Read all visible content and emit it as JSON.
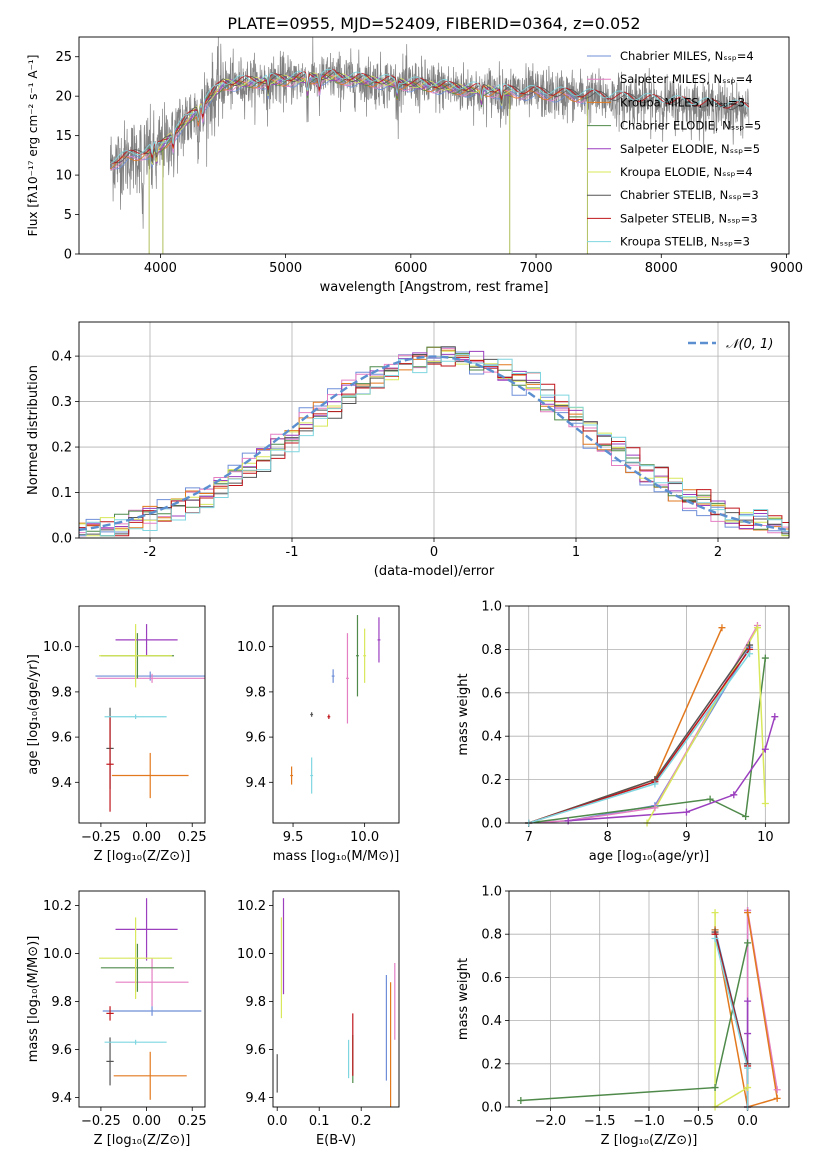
{
  "figure": {
    "title": "PLATE=0955, MJD=52409, FIBERID=0364, z=0.052"
  },
  "colors": {
    "series": [
      "#6f8fd8",
      "#e57fc4",
      "#e2791f",
      "#4f8a4a",
      "#9b3fbf",
      "#d8e85a",
      "#555555",
      "#c0161c",
      "#7fd6e0"
    ],
    "gauss": "#5b8fd0",
    "mass_age_line": "#2e7fd0",
    "grey": "#808080"
  },
  "chart_data": [
    {
      "id": "spectrum",
      "type": "line",
      "xlabel": "wavelength [Angstrom, rest frame]",
      "ylabel": "Flux [fλ10⁻¹⁷ erg cm⁻² s⁻¹ A⁻¹]",
      "xlim": [
        3350,
        9020
      ],
      "ylim": [
        0,
        27.5
      ],
      "xticks": [
        4000,
        5000,
        6000,
        7000,
        8000,
        9000
      ],
      "yticks": [
        0,
        5,
        10,
        15,
        20,
        25
      ],
      "legend_position": "top-right",
      "series": [
        {
          "name": "Chabrier MILES, Nₛₛₚ=4",
          "x_range": [
            3600,
            7400
          ]
        },
        {
          "name": "Salpeter MILES, Nₛₛₚ=4",
          "x_range": [
            3600,
            7400
          ]
        },
        {
          "name": "Kroupa MILES, Nₛₛₚ=3",
          "x_range": [
            3600,
            7400
          ]
        },
        {
          "name": "Chabrier ELODIE, Nₛₛₚ=5",
          "x_range": [
            3900,
            6800
          ]
        },
        {
          "name": "Salpeter ELODIE, Nₛₛₚ=5",
          "x_range": [
            3900,
            6800
          ]
        },
        {
          "name": "Kroupa ELODIE, Nₛₛₚ=4",
          "x_range": [
            3900,
            6800
          ]
        },
        {
          "name": "Chabrier STELIB, Nₛₛₚ=3",
          "x_range": [
            3600,
            8700
          ]
        },
        {
          "name": "Salpeter STELIB, Nₛₛₚ=3",
          "x_range": [
            3600,
            8700
          ]
        },
        {
          "name": "Kroupa STELIB, Nₛₛₚ=3",
          "x_range": [
            3600,
            8700
          ]
        }
      ],
      "data_x_range": [
        3600,
        8700
      ]
    },
    {
      "id": "residual_hist",
      "type": "step",
      "xlabel": "(data-model)/error",
      "ylabel": "Normed distribution",
      "xlim": [
        -2.5,
        2.5
      ],
      "ylim": [
        0,
        0.475
      ],
      "xticks": [
        -2,
        -1,
        0,
        1,
        2
      ],
      "yticks": [
        0.0,
        0.1,
        0.2,
        0.3,
        0.4
      ],
      "grid": true,
      "legend": "𝒩(0, 1)",
      "legend_position": "top-right",
      "gaussian": {
        "mean": 0,
        "sigma": 1
      }
    },
    {
      "id": "age_vs_Z",
      "type": "errorbar",
      "xlabel": "Z [log₁₀(Z/Z⊙)]",
      "ylabel": "age  [log₁₀(age/yr)]",
      "xlim": [
        -0.37,
        0.32
      ],
      "ylim": [
        9.22,
        10.18
      ],
      "xticks": [
        -0.25,
        0.0,
        0.25
      ],
      "xticklabels": [
        "−0.25",
        "0.00",
        "0.25"
      ],
      "yticks": [
        9.4,
        9.6,
        9.8,
        10.0
      ],
      "points": [
        {
          "s": 0,
          "x": 0.02,
          "xerr": 0.3,
          "y": 9.87,
          "yerr": 0.02
        },
        {
          "s": 1,
          "x": 0.03,
          "xerr": 0.3,
          "y": 9.86,
          "yerr": 0.02
        },
        {
          "s": 2,
          "x": 0.02,
          "xerr": 0.21,
          "y": 9.43,
          "yerr": 0.1
        },
        {
          "s": 3,
          "x": -0.05,
          "xerr": 0.2,
          "y": 9.96,
          "yerr": 0.1
        },
        {
          "s": 4,
          "x": 0.0,
          "xerr": 0.17,
          "y": 10.03,
          "yerr": 0.07
        },
        {
          "s": 5,
          "x": -0.06,
          "xerr": 0.2,
          "y": 9.96,
          "yerr": 0.14
        },
        {
          "s": 6,
          "x": -0.2,
          "xerr": 0.02,
          "y": 9.55,
          "yerr": 0.18
        },
        {
          "s": 7,
          "x": -0.2,
          "xerr": 0.02,
          "y": 9.48,
          "yerr": 0.21
        },
        {
          "s": 8,
          "x": -0.06,
          "xerr": 0.17,
          "y": 9.69,
          "yerr": 0.01
        }
      ]
    },
    {
      "id": "age_vs_mass",
      "type": "errorbar",
      "xlabel": "mass [log₁₀(M/M⊙)]",
      "ylabel": "",
      "xlim": [
        9.36,
        10.24
      ],
      "ylim": [
        9.22,
        10.18
      ],
      "xticks": [
        9.5,
        10.0
      ],
      "xticklabels": [
        "9.5",
        "10.0"
      ],
      "yticks": [
        9.4,
        9.6,
        9.8,
        10.0
      ],
      "points": [
        {
          "s": 0,
          "x": 9.78,
          "xerr": 0.01,
          "y": 9.87,
          "yerr": 0.03
        },
        {
          "s": 1,
          "x": 9.88,
          "xerr": 0.01,
          "y": 9.86,
          "yerr": 0.2
        },
        {
          "s": 2,
          "x": 9.49,
          "xerr": 0.01,
          "y": 9.43,
          "yerr": 0.04
        },
        {
          "s": 3,
          "x": 9.95,
          "xerr": 0.01,
          "y": 9.96,
          "yerr": 0.18
        },
        {
          "s": 4,
          "x": 10.1,
          "xerr": 0.01,
          "y": 10.03,
          "yerr": 0.1
        },
        {
          "s": 5,
          "x": 10.0,
          "xerr": 0.01,
          "y": 9.96,
          "yerr": 0.12
        },
        {
          "s": 6,
          "x": 9.63,
          "xerr": 0.01,
          "y": 9.7,
          "yerr": 0.01
        },
        {
          "s": 7,
          "x": 9.75,
          "xerr": 0.01,
          "y": 9.69,
          "yerr": 0.01
        },
        {
          "s": 8,
          "x": 9.63,
          "xerr": 0.01,
          "y": 9.43,
          "yerr": 0.08
        }
      ]
    },
    {
      "id": "mass_weight_vs_age",
      "type": "line",
      "xlabel": "age  [log₁₀(age/yr)]",
      "ylabel": "mass weight",
      "xlim": [
        6.75,
        10.3
      ],
      "ylim": [
        0,
        1.0
      ],
      "xticks": [
        7,
        8,
        9,
        10
      ],
      "yticks": [
        0.0,
        0.2,
        0.4,
        0.6,
        0.8,
        1.0
      ],
      "grid": true,
      "series": [
        {
          "s": 0,
          "points": [
            [
              7.0,
              0.0
            ],
            [
              7.5,
              0.01
            ],
            [
              8.6,
              0.08
            ],
            [
              9.8,
              0.81
            ]
          ]
        },
        {
          "s": 1,
          "points": [
            [
              7.0,
              0.0
            ],
            [
              7.5,
              0.01
            ],
            [
              8.6,
              0.07
            ],
            [
              9.9,
              0.91
            ]
          ]
        },
        {
          "s": 2,
          "points": [
            [
              7.0,
              0.0
            ],
            [
              8.6,
              0.2
            ],
            [
              9.45,
              0.9
            ]
          ]
        },
        {
          "s": 3,
          "points": [
            [
              7.0,
              0.0
            ],
            [
              9.3,
              0.11
            ],
            [
              9.75,
              0.03
            ],
            [
              10.0,
              0.76
            ]
          ]
        },
        {
          "s": 4,
          "points": [
            [
              7.5,
              0.01
            ],
            [
              9.0,
              0.05
            ],
            [
              9.6,
              0.13
            ],
            [
              10.0,
              0.34
            ],
            [
              10.12,
              0.49
            ]
          ]
        },
        {
          "s": 5,
          "points": [
            [
              8.5,
              0.0
            ],
            [
              9.9,
              0.9
            ],
            [
              10.0,
              0.09
            ]
          ]
        },
        {
          "s": 6,
          "points": [
            [
              7.0,
              0.0
            ],
            [
              8.6,
              0.2
            ],
            [
              9.8,
              0.82
            ]
          ]
        },
        {
          "s": 7,
          "points": [
            [
              7.0,
              0.0
            ],
            [
              8.6,
              0.19
            ],
            [
              9.8,
              0.8
            ]
          ]
        },
        {
          "s": 8,
          "points": [
            [
              7.0,
              0.0
            ],
            [
              8.6,
              0.18
            ],
            [
              9.8,
              0.78
            ]
          ]
        }
      ]
    },
    {
      "id": "mass_vs_Z",
      "type": "errorbar",
      "xlabel": "Z [log₁₀(Z/Z⊙)]",
      "ylabel": "mass [log₁₀(M/M⊙)]",
      "xlim": [
        -0.37,
        0.32
      ],
      "ylim": [
        9.36,
        10.26
      ],
      "xticks": [
        -0.25,
        0.0,
        0.25
      ],
      "xticklabels": [
        "−0.25",
        "0.00",
        "0.25"
      ],
      "yticks": [
        9.4,
        9.6,
        9.8,
        10.0,
        10.2
      ],
      "points": [
        {
          "s": 0,
          "x": 0.03,
          "xerr": 0.27,
          "y": 9.76,
          "yerr": 0.02
        },
        {
          "s": 1,
          "x": 0.03,
          "xerr": 0.2,
          "y": 9.88,
          "yerr": 0.1
        },
        {
          "s": 2,
          "x": 0.02,
          "xerr": 0.2,
          "y": 9.49,
          "yerr": 0.1
        },
        {
          "s": 3,
          "x": -0.05,
          "xerr": 0.2,
          "y": 9.94,
          "yerr": 0.1
        },
        {
          "s": 4,
          "x": 0.0,
          "xerr": 0.17,
          "y": 10.1,
          "yerr": 0.13
        },
        {
          "s": 5,
          "x": -0.06,
          "xerr": 0.2,
          "y": 9.98,
          "yerr": 0.17
        },
        {
          "s": 6,
          "x": -0.2,
          "xerr": 0.02,
          "y": 9.55,
          "yerr": 0.1
        },
        {
          "s": 7,
          "x": -0.2,
          "xerr": 0.02,
          "y": 9.75,
          "yerr": 0.03
        },
        {
          "s": 8,
          "x": -0.06,
          "xerr": 0.17,
          "y": 9.63,
          "yerr": 0.01
        }
      ]
    },
    {
      "id": "mass_vs_EBV",
      "type": "errorbar",
      "xlabel": "E(B-V)",
      "ylabel": "",
      "xlim": [
        -0.01,
        0.29
      ],
      "ylim": [
        9.36,
        10.26
      ],
      "xticks": [
        0.0,
        0.1,
        0.2
      ],
      "xticklabels": [
        "0.0",
        "0.1",
        "0.2"
      ],
      "yticks": [
        9.4,
        9.6,
        9.8,
        10.0,
        10.2
      ],
      "points": [
        {
          "s": 0,
          "x": 0.26,
          "xerr": 0.0,
          "y": 9.69,
          "yerr": 0.22
        },
        {
          "s": 1,
          "x": 0.28,
          "xerr": 0.0,
          "y": 9.8,
          "yerr": 0.16
        },
        {
          "s": 2,
          "x": 0.27,
          "xerr": 0.0,
          "y": 9.58,
          "yerr": 0.3
        },
        {
          "s": 3,
          "x": 0.18,
          "xerr": 0.0,
          "y": 9.56,
          "yerr": 0.1
        },
        {
          "s": 4,
          "x": 0.015,
          "xerr": 0.0,
          "y": 10.03,
          "yerr": 0.2
        },
        {
          "s": 5,
          "x": 0.01,
          "xerr": 0.0,
          "y": 9.94,
          "yerr": 0.21
        },
        {
          "s": 6,
          "x": 0.0,
          "xerr": 0.0,
          "y": 9.5,
          "yerr": 0.08
        },
        {
          "s": 7,
          "x": 0.18,
          "xerr": 0.0,
          "y": 9.62,
          "yerr": 0.13
        },
        {
          "s": 8,
          "x": 0.17,
          "xerr": 0.0,
          "y": 9.56,
          "yerr": 0.08
        }
      ]
    },
    {
      "id": "mass_weight_vs_Z",
      "type": "line",
      "xlabel": "Z [log₁₀(Z/Z⊙)]",
      "ylabel": "mass weight",
      "xlim": [
        -2.42,
        0.42
      ],
      "ylim": [
        0,
        1.0
      ],
      "xticks": [
        -2.0,
        -1.5,
        -1.0,
        -0.5,
        0.0
      ],
      "xticklabels": [
        "−2.0",
        "−1.5",
        "−1.0",
        "−0.5",
        "0.0"
      ],
      "yticks": [
        0.0,
        0.2,
        0.4,
        0.6,
        0.8,
        1.0
      ],
      "grid": true,
      "series": [
        {
          "s": 0,
          "points": [
            [
              -0.33,
              0.82
            ],
            [
              0.0,
              0.2
            ],
            [
              0.0,
              0.91
            ]
          ]
        },
        {
          "s": 1,
          "points": [
            [
              0.0,
              0.0
            ],
            [
              0.0,
              0.91
            ],
            [
              0.3,
              0.08
            ]
          ]
        },
        {
          "s": 2,
          "points": [
            [
              0.0,
              0.9
            ],
            [
              0.3,
              0.04
            ],
            [
              0.0,
              0.0
            ],
            [
              -0.33,
              0.82
            ]
          ]
        },
        {
          "s": 3,
          "points": [
            [
              -2.3,
              0.03
            ],
            [
              -0.33,
              0.09
            ],
            [
              0.0,
              0.76
            ]
          ]
        },
        {
          "s": 4,
          "points": [
            [
              0.0,
              0.0
            ],
            [
              0.0,
              0.49
            ],
            [
              0.0,
              0.34
            ]
          ]
        },
        {
          "s": 5,
          "points": [
            [
              -0.33,
              0.9
            ],
            [
              -0.33,
              0.0
            ],
            [
              0.0,
              0.09
            ]
          ]
        },
        {
          "s": 6,
          "points": [
            [
              -0.33,
              0.81
            ],
            [
              0.0,
              0.2
            ],
            [
              0.0,
              0.0
            ]
          ]
        },
        {
          "s": 7,
          "points": [
            [
              -0.33,
              0.8
            ],
            [
              0.0,
              0.19
            ],
            [
              0.0,
              0.0
            ]
          ]
        },
        {
          "s": 8,
          "points": [
            [
              -0.33,
              0.78
            ],
            [
              0.0,
              0.18
            ],
            [
              0.0,
              0.0
            ]
          ]
        }
      ]
    }
  ]
}
